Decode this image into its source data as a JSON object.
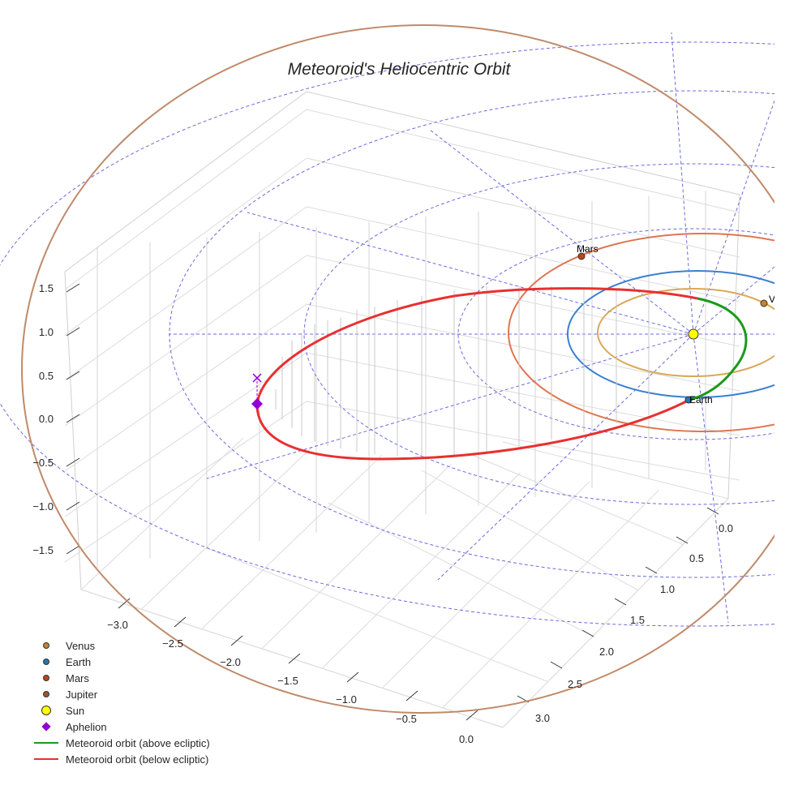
{
  "chart_data": {
    "type": "3d-orbit-plot",
    "title": "Meteoroid's Heliocentric Orbit",
    "axes": {
      "x": {
        "ticks": [
          "−3.0",
          "−2.5",
          "−2.0",
          "−1.5",
          "−1.0",
          "−0.5",
          "0.0"
        ],
        "range": [
          -3.2,
          0.1
        ]
      },
      "y": {
        "ticks": [
          "0.0",
          "0.5",
          "1.0",
          "1.5",
          "2.0",
          "2.5",
          "3.0"
        ],
        "range": [
          -0.1,
          3.2
        ]
      },
      "z": {
        "ticks": [
          "−1.5",
          "−1.0",
          "−0.5",
          "0.0",
          "0.5",
          "1.0",
          "1.5"
        ],
        "range": [
          -1.9,
          1.7
        ]
      }
    },
    "grid": true,
    "reference_grid": {
      "style": "dashed",
      "color": "#6b6bdf",
      "rings": 4,
      "spokes": 8
    },
    "planets": [
      {
        "name": "Venus",
        "label": "Venu",
        "color": "#c9822c",
        "orbit_color": "#d9a857"
      },
      {
        "name": "Earth",
        "label": "Earth",
        "color": "#1f77b4",
        "orbit_color": "#3b7fd0"
      },
      {
        "name": "Mars",
        "label": "Mars",
        "color": "#c1440e",
        "orbit_color": "#e07550"
      },
      {
        "name": "Jupiter",
        "label": "",
        "color": "#b07b5a",
        "orbit_color": "#c08a6a"
      }
    ],
    "sun": {
      "label": "Sun",
      "color": "#ffff00"
    },
    "aphelion": {
      "label": "Aphelion",
      "color": "#9400d3"
    },
    "meteoroid": {
      "above_label": "Meteoroid orbit (above ecliptic)",
      "above_color": "#1a9a1a",
      "below_label": "Meteoroid orbit (below ecliptic)",
      "below_color": "#e83030",
      "drop_line_color": "#c8c8c8"
    }
  },
  "legend": [
    {
      "label": "Venus",
      "kind": "dot",
      "color": "#c9822c"
    },
    {
      "label": "Earth",
      "kind": "dot",
      "color": "#1f77b4"
    },
    {
      "label": "Mars",
      "kind": "dot",
      "color": "#c1440e"
    },
    {
      "label": "Jupiter",
      "kind": "dot",
      "color": "#a0522d"
    },
    {
      "label": "Sun",
      "kind": "bigdot",
      "color": "#ffff00"
    },
    {
      "label": "Aphelion",
      "kind": "diamond",
      "color": "#9400d3"
    },
    {
      "label": "Meteoroid orbit (above ecliptic)",
      "kind": "line",
      "color": "#1a9a1a"
    },
    {
      "label": "Meteoroid orbit (below ecliptic)",
      "kind": "line",
      "color": "#e83030"
    }
  ]
}
